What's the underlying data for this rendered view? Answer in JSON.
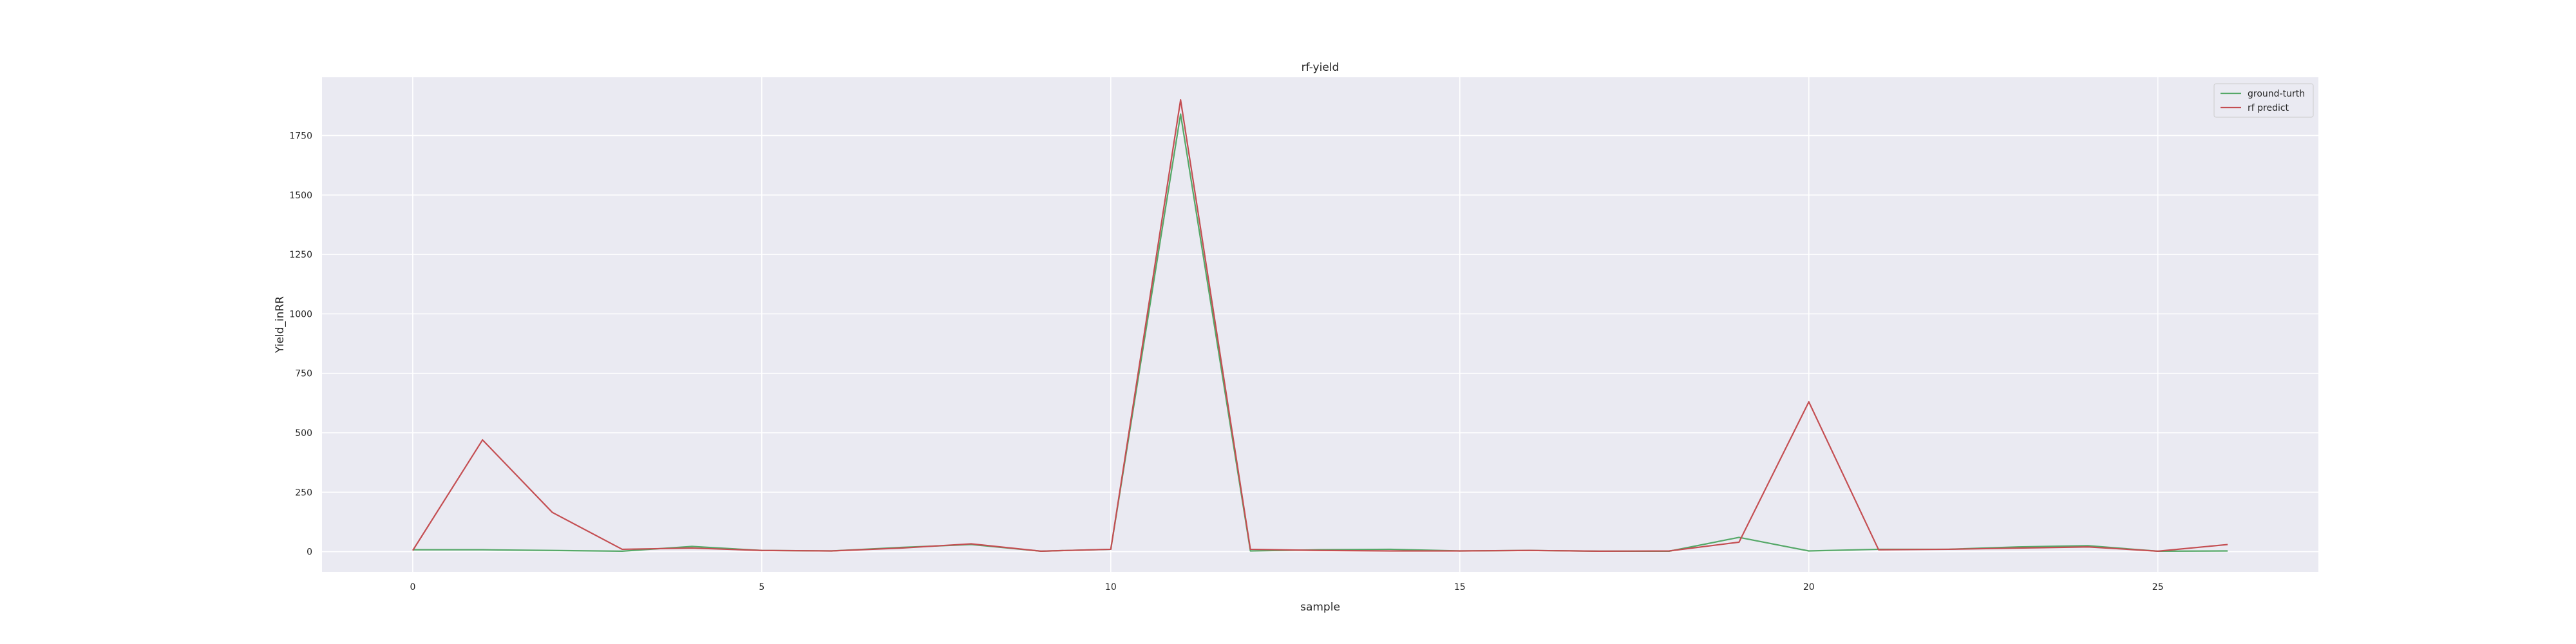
{
  "chart_data": {
    "type": "line",
    "title": "rf-yield",
    "xlabel": "sample",
    "ylabel": "Yield_inRR",
    "x": [
      0,
      1,
      2,
      3,
      4,
      5,
      6,
      7,
      8,
      9,
      10,
      11,
      12,
      13,
      14,
      15,
      16,
      17,
      18,
      19,
      20,
      21,
      22,
      23,
      24,
      25,
      26
    ],
    "series": [
      {
        "name": "ground-turth",
        "color": "#55a868",
        "values": [
          8,
          8,
          5,
          2,
          22,
          5,
          3,
          18,
          30,
          2,
          10,
          1840,
          3,
          8,
          10,
          3,
          5,
          2,
          2,
          60,
          3,
          10,
          10,
          20,
          25,
          2,
          3
        ]
      },
      {
        "name": "rf predict",
        "color": "#c44e52",
        "values": [
          5,
          470,
          165,
          10,
          15,
          5,
          3,
          15,
          33,
          2,
          10,
          1900,
          10,
          5,
          3,
          3,
          5,
          2,
          3,
          40,
          630,
          8,
          10,
          15,
          20,
          2,
          30
        ]
      }
    ],
    "xticks": [
      0,
      5,
      10,
      15,
      20,
      25
    ],
    "yticks": [
      0,
      250,
      500,
      750,
      1000,
      1250,
      1500,
      1750
    ],
    "xlim": [
      -1.3,
      27.3
    ],
    "ylim": [
      -85,
      1995
    ],
    "grid": true,
    "legend": "top-right",
    "background": "#eaeaf2"
  }
}
